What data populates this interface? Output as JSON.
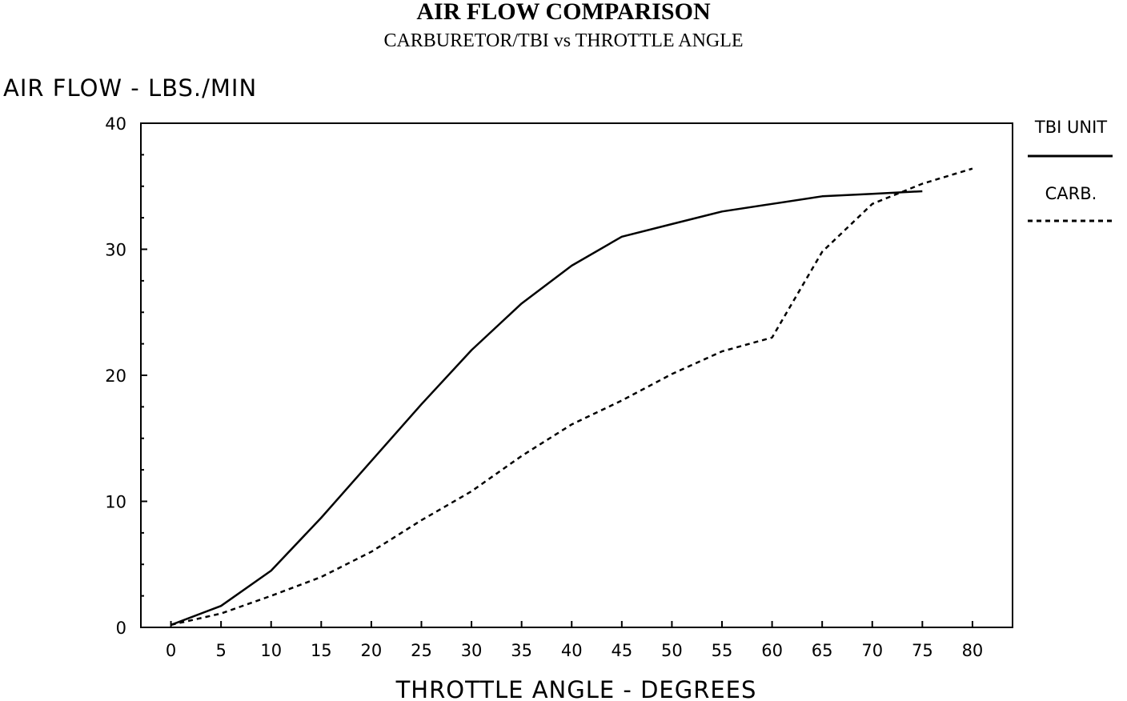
{
  "chart_data": {
    "type": "line",
    "title": "AIR FLOW COMPARISON",
    "subtitle": "CARBURETOR/TBI vs THROTTLE ANGLE",
    "xlabel": "THROTTLE ANGLE - DEGREES",
    "ylabel": "AIR FLOW - LBS./MIN",
    "xlim": [
      -3,
      84
    ],
    "ylim": [
      0,
      40
    ],
    "x_ticks": [
      0,
      5,
      10,
      15,
      20,
      25,
      30,
      35,
      40,
      45,
      50,
      55,
      60,
      65,
      70,
      75,
      80
    ],
    "y_ticks": [
      0,
      10,
      20,
      30,
      40
    ],
    "grid": false,
    "legend_position": "right",
    "series": [
      {
        "name": "TBI UNIT",
        "style": "solid",
        "color": "#000000",
        "x": [
          0,
          5,
          10,
          15,
          20,
          25,
          30,
          35,
          40,
          45,
          50,
          55,
          60,
          65,
          70,
          75
        ],
        "y": [
          0.2,
          1.7,
          4.5,
          8.7,
          13.2,
          17.7,
          22.0,
          25.7,
          28.7,
          31.0,
          32.0,
          33.0,
          33.6,
          34.2,
          34.4,
          34.6
        ]
      },
      {
        "name": "CARB.",
        "style": "dashed",
        "color": "#000000",
        "x": [
          0,
          5,
          10,
          15,
          20,
          25,
          30,
          35,
          40,
          45,
          50,
          55,
          60,
          65,
          70,
          75,
          80
        ],
        "y": [
          0.2,
          1.1,
          2.5,
          4.0,
          6.0,
          8.5,
          10.8,
          13.6,
          16.1,
          18.0,
          20.1,
          21.9,
          23.0,
          29.8,
          33.6,
          35.2,
          36.4
        ]
      }
    ]
  }
}
